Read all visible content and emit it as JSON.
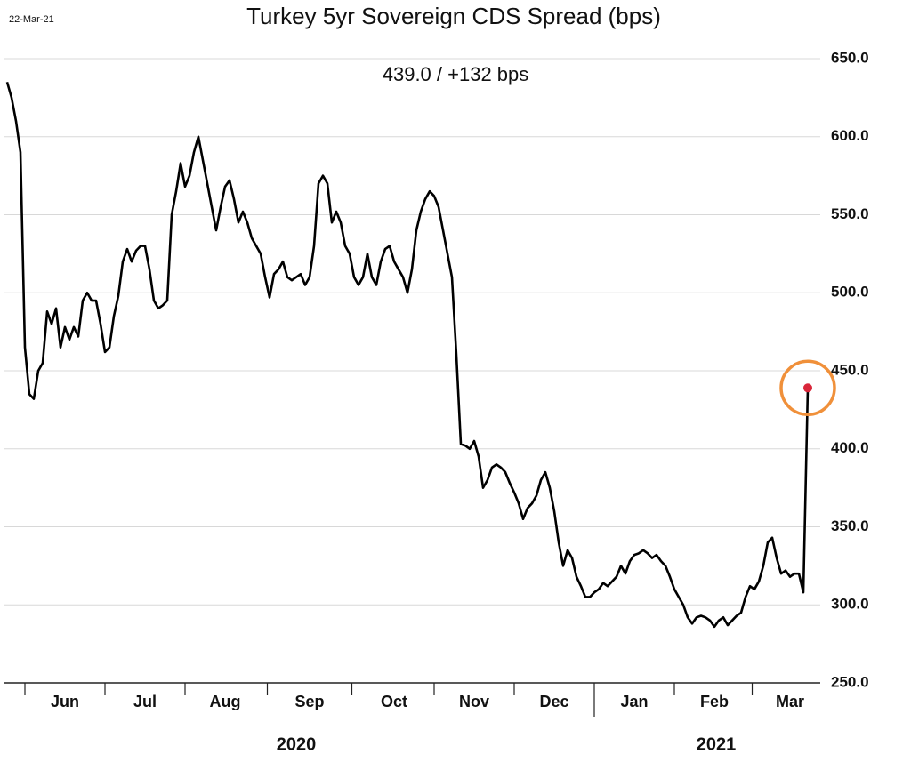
{
  "chart_data": {
    "type": "line",
    "title": "Turkey 5yr Sovereign CDS Spread (bps)",
    "date_label": "22-Mar-21",
    "subtitle": "439.0  /  +132 bps",
    "categories": [
      null,
      null,
      null,
      null,
      null,
      null,
      null,
      null,
      null,
      null,
      null,
      null,
      null,
      "Jun",
      null,
      null,
      null,
      null,
      null,
      null,
      null,
      null,
      null,
      null,
      null,
      null,
      null,
      null,
      null,
      null,
      null,
      "Jul",
      null,
      null,
      null,
      null,
      null,
      null,
      null,
      null,
      null,
      null,
      null,
      null,
      null,
      null,
      null,
      null,
      null,
      "Aug",
      null,
      null,
      null,
      null,
      null,
      null,
      null,
      null,
      null,
      null,
      null,
      null,
      null,
      null,
      null,
      null,
      null,
      null,
      "Sep",
      null,
      null,
      null,
      null,
      null,
      null,
      null,
      null,
      null,
      null,
      null,
      null,
      null,
      null,
      null,
      null,
      null,
      null,
      "Oct",
      null,
      null,
      null,
      null,
      null,
      null,
      null,
      null,
      null,
      null,
      null,
      null,
      null,
      null,
      null,
      null,
      null,
      "Nov",
      null,
      null,
      null,
      null,
      null,
      null,
      null,
      null,
      null,
      null,
      null,
      null,
      null,
      null,
      null,
      null,
      null,
      "Dec",
      null,
      null,
      null,
      null,
      null,
      null,
      null,
      null,
      null,
      null,
      null,
      null,
      null,
      null,
      null,
      null,
      null,
      "Jan",
      null,
      null,
      null,
      null,
      null,
      null,
      null,
      null,
      null,
      null,
      null,
      null,
      null,
      null,
      null,
      null,
      null,
      "Feb",
      null,
      null,
      null,
      null,
      null,
      null,
      null,
      null,
      null,
      null,
      null,
      null,
      null,
      null,
      null,
      null,
      "Mar",
      null,
      null,
      null,
      null
    ],
    "values": [
      635,
      625,
      610,
      590,
      465,
      435,
      432,
      450,
      455,
      488,
      480,
      490,
      465,
      478,
      470,
      478,
      472,
      495,
      500,
      495,
      495,
      480,
      462,
      465,
      485,
      498,
      520,
      528,
      520,
      527,
      530,
      530,
      515,
      495,
      490,
      492,
      495,
      550,
      565,
      583,
      568,
      575,
      590,
      600,
      585,
      570,
      555,
      540,
      555,
      568,
      572,
      560,
      545,
      552,
      545,
      535,
      530,
      525,
      510,
      497,
      512,
      515,
      520,
      510,
      508,
      510,
      512,
      505,
      510,
      530,
      570,
      575,
      570,
      545,
      552,
      545,
      530,
      525,
      510,
      505,
      510,
      525,
      510,
      505,
      520,
      528,
      530,
      520,
      515,
      510,
      500,
      515,
      540,
      552,
      560,
      565,
      562,
      555,
      540,
      525,
      510,
      460,
      403,
      402,
      400,
      405,
      395,
      375,
      380,
      388,
      390,
      388,
      385,
      378,
      372,
      365,
      355,
      362,
      365,
      370,
      380,
      385,
      375,
      360,
      340,
      325,
      335,
      330,
      318,
      312,
      305,
      305,
      308,
      310,
      314,
      312,
      315,
      318,
      325,
      320,
      328,
      332,
      333,
      335,
      333,
      330,
      332,
      328,
      325,
      318,
      310,
      305,
      300,
      292,
      288,
      292,
      293,
      292,
      290,
      286,
      290,
      292,
      287,
      290,
      293,
      295,
      305,
      312,
      310,
      315,
      325,
      340,
      343,
      330,
      320,
      322,
      318,
      320,
      320,
      308,
      439
    ],
    "color": "#000000",
    "year_labels": [
      "2020",
      "2021"
    ],
    "ylim": [
      250,
      650
    ],
    "yticks": [
      {
        "value": 250,
        "label": "250.0"
      },
      {
        "value": 300,
        "label": "300.0"
      },
      {
        "value": 350,
        "label": "350.0"
      },
      {
        "value": 400,
        "label": "400.0"
      },
      {
        "value": 450,
        "label": "450.0"
      },
      {
        "value": 500,
        "label": "500.0"
      },
      {
        "value": 550,
        "label": "550.0"
      },
      {
        "value": 600,
        "label": "600.0"
      },
      {
        "value": 650,
        "label": "650.0"
      }
    ],
    "grid": true,
    "highlight_last": {
      "dot_color": "#d9263a",
      "ring_color": "#f0903a"
    }
  }
}
